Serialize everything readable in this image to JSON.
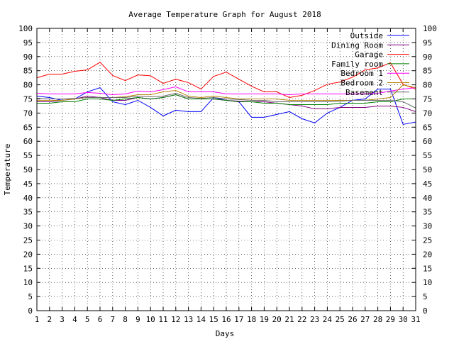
{
  "chart_data": {
    "type": "line",
    "title": "Average Temperature Graph for August 2018",
    "xlabel": "Days",
    "ylabel": "Temperature",
    "xlim": [
      1,
      31
    ],
    "ylim": [
      0,
      100
    ],
    "xticks": [
      1,
      2,
      3,
      4,
      5,
      6,
      7,
      8,
      9,
      10,
      11,
      12,
      13,
      14,
      15,
      16,
      17,
      18,
      19,
      20,
      21,
      22,
      23,
      24,
      25,
      26,
      27,
      28,
      29,
      30,
      31
    ],
    "yticks": [
      0,
      5,
      10,
      15,
      20,
      25,
      30,
      35,
      40,
      45,
      50,
      55,
      60,
      65,
      70,
      75,
      80,
      85,
      90,
      95,
      100
    ],
    "grid": true,
    "legend_position": "top-right",
    "x": [
      1,
      2,
      3,
      4,
      5,
      6,
      7,
      8,
      9,
      10,
      11,
      12,
      13,
      14,
      15,
      16,
      17,
      18,
      19,
      20,
      21,
      22,
      23,
      24,
      25,
      26,
      27,
      28,
      29,
      30,
      31
    ],
    "series": [
      {
        "name": "Outside",
        "color": "#0000ff",
        "values": [
          76,
          75.5,
          74.5,
          75,
          77.5,
          79,
          74,
          73,
          74.5,
          72,
          69,
          71,
          70.5,
          70.5,
          75.5,
          74.5,
          74,
          68.5,
          68.5,
          69.5,
          70.5,
          68,
          66.5,
          70,
          72,
          74.5,
          75,
          78.5,
          78.5,
          66,
          66.8
        ]
      },
      {
        "name": "Dining Room",
        "color": "#800080",
        "values": [
          74,
          74,
          74.5,
          75,
          76,
          75.5,
          74.5,
          74.5,
          75.5,
          75,
          75.5,
          76.5,
          75,
          75,
          75,
          74.5,
          74.2,
          74,
          74,
          73.5,
          73,
          72.5,
          71.5,
          71.5,
          72,
          72,
          72,
          72.5,
          72.5,
          72,
          70.5
        ]
      },
      {
        "name": "Garage",
        "color": "#ff0000",
        "values": [
          82.5,
          83.8,
          83.8,
          84.8,
          85.3,
          88,
          83.3,
          81.5,
          83.5,
          83.2,
          80.5,
          82,
          80.8,
          78.5,
          83,
          84.5,
          82,
          79.5,
          77.5,
          77.5,
          75.5,
          76.3,
          78,
          80.2,
          81,
          82.7,
          85.3,
          86,
          87.8,
          80.2,
          78.5
        ]
      },
      {
        "name": "Family room",
        "color": "#008000",
        "values": [
          73.5,
          73.5,
          74,
          74,
          75,
          75,
          74.5,
          75,
          75.5,
          75,
          75.5,
          76.5,
          75,
          75,
          75,
          74.5,
          74,
          74,
          73.5,
          73.5,
          73,
          73,
          73,
          73,
          73.5,
          73.5,
          73.5,
          74,
          74,
          75,
          75
        ]
      },
      {
        "name": "Bedroom 1",
        "color": "#ff00ff",
        "values": [
          77,
          76.8,
          76.8,
          76.8,
          77.3,
          77,
          76.5,
          76.8,
          77.8,
          77.5,
          78.3,
          79.3,
          77.5,
          77.5,
          77.5,
          76.8,
          76.8,
          76.8,
          76.8,
          76.8,
          76.5,
          76.8,
          76.8,
          76.8,
          76.8,
          76.8,
          76.8,
          77,
          77.8,
          78.5,
          79
        ]
      },
      {
        "name": "Bedroom 2",
        "color": "#b8860b",
        "values": [
          74.5,
          74.5,
          74.5,
          75,
          75.5,
          75.5,
          75.5,
          75.8,
          76.5,
          76.5,
          77.5,
          78,
          76,
          75.5,
          76,
          75.5,
          75,
          75,
          75,
          75,
          74.5,
          74.5,
          74.5,
          74.5,
          74.5,
          74.5,
          74.5,
          75,
          75.5,
          80,
          79
        ]
      },
      {
        "name": "Basement",
        "color": "#696969",
        "values": [
          75.2,
          75,
          75,
          75.2,
          75.5,
          75.5,
          75.5,
          75.5,
          76,
          75.8,
          76,
          77,
          75.5,
          75.2,
          75.5,
          75,
          74.8,
          74.5,
          74.5,
          74,
          74,
          74,
          74,
          74,
          74.2,
          74.5,
          74.5,
          74.5,
          74.5,
          74,
          71.8
        ]
      }
    ]
  }
}
